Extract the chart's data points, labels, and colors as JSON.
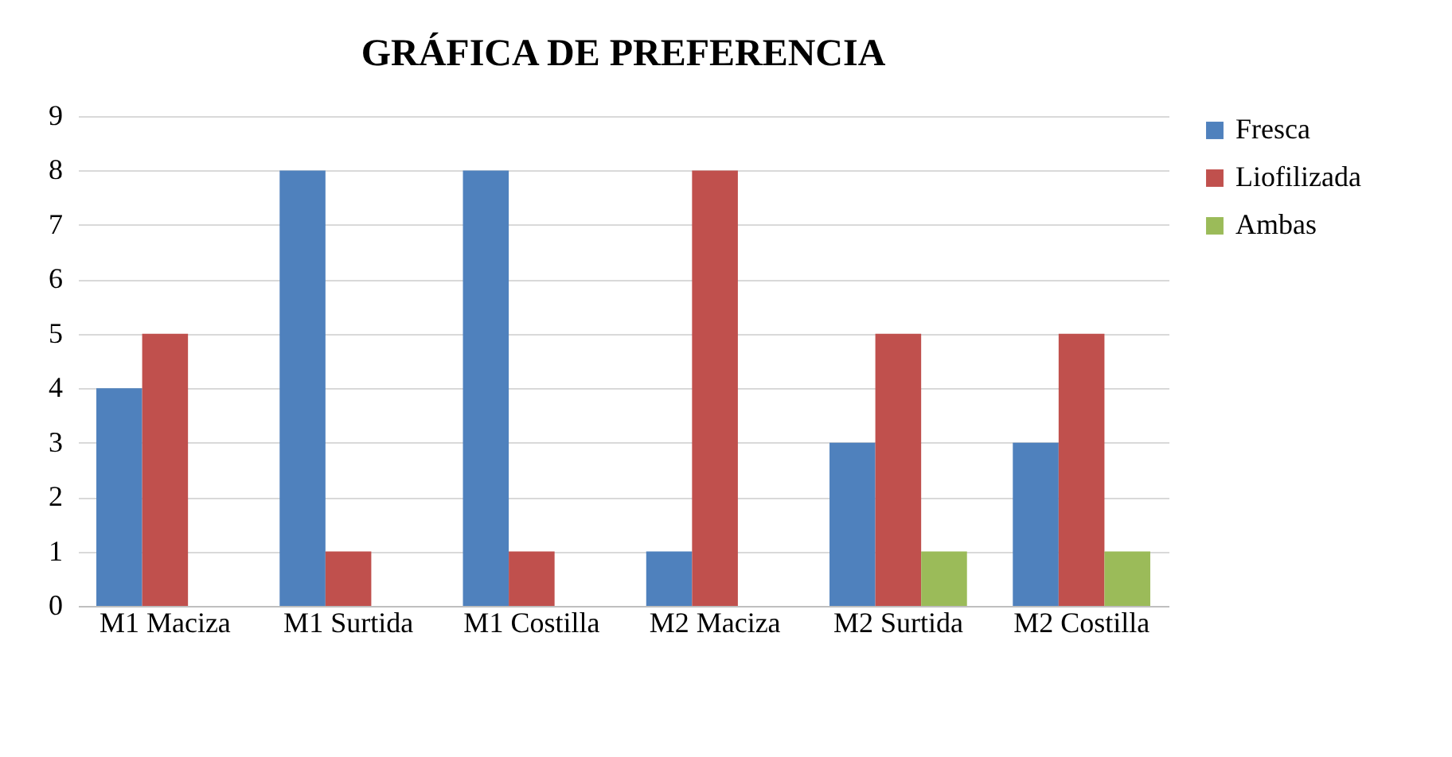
{
  "chart_data": {
    "type": "bar",
    "title": "GRÁFICA DE PREFERENCIA",
    "categories": [
      "M1 Maciza",
      "M1 Surtida",
      "M1 Costilla",
      "M2 Maciza",
      "M2 Surtida",
      "M2 Costilla"
    ],
    "series": [
      {
        "name": "Fresca",
        "color": "#4f81bd",
        "values": [
          4,
          8,
          8,
          1,
          3,
          3
        ]
      },
      {
        "name": "Liofilizada",
        "color": "#c0504d",
        "values": [
          5,
          1,
          1,
          8,
          5,
          5
        ]
      },
      {
        "name": "Ambas",
        "color": "#9bbb59",
        "values": [
          0,
          0,
          0,
          0,
          1,
          1
        ]
      }
    ],
    "ylim": [
      0,
      9
    ],
    "yticks": [
      0,
      1,
      2,
      3,
      4,
      5,
      6,
      7,
      8,
      9
    ],
    "grid": "y",
    "legend": "right"
  }
}
